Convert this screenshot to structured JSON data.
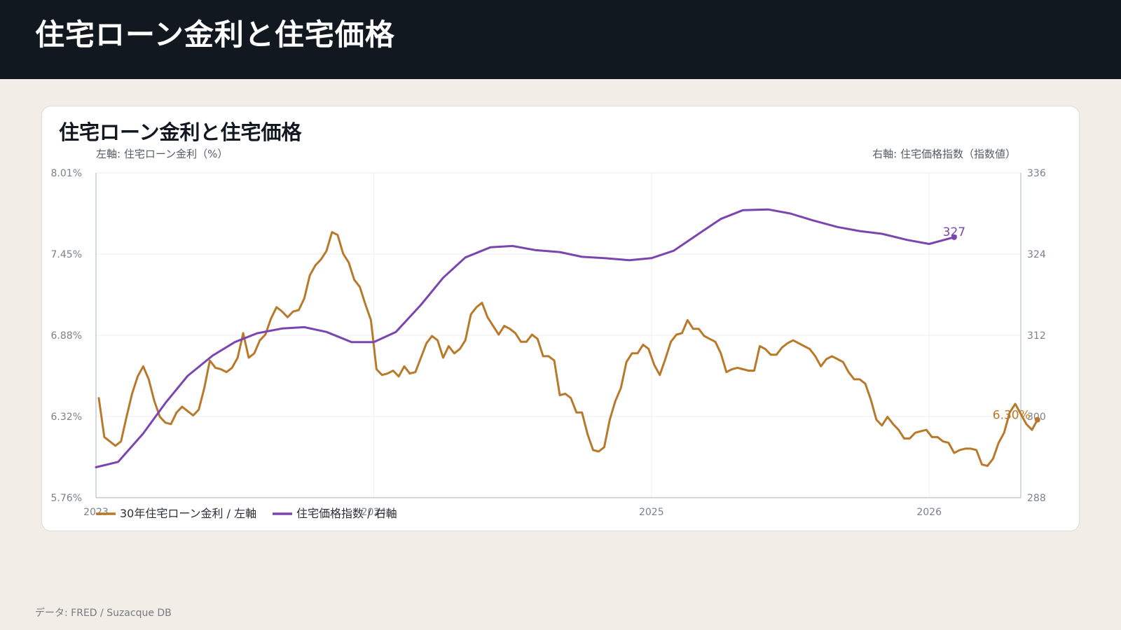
{
  "header": {
    "title": "住宅ローン金利と住宅価格"
  },
  "card": {
    "title": "住宅ローン金利と住宅価格",
    "left_axis_caption": "左軸: 住宅ローン金利（%）",
    "right_axis_caption": "右軸: 住宅価格指数（指数値）"
  },
  "footer": {
    "source": "データ: FRED / Suzacque DB"
  },
  "chart_data": {
    "type": "line",
    "title": "住宅ローン金利と住宅価格",
    "x_ticks": [
      "2023",
      "2024",
      "2025",
      "2026"
    ],
    "x_range": [
      2023.0,
      2026.33
    ],
    "y_left": {
      "label": "左軸: 住宅ローン金利（%）",
      "range": [
        5.76,
        8.01
      ],
      "ticks": [
        "8.01%",
        "7.45%",
        "6.88%",
        "6.32%",
        "5.76%"
      ]
    },
    "y_right": {
      "label": "右軸: 住宅価格指数（指数値）",
      "range": [
        288,
        336
      ],
      "ticks": [
        "336",
        "324",
        "312",
        "300",
        "288"
      ]
    },
    "grid": true,
    "legend_position": "bottom-left",
    "colors": {
      "mortgage": "#b8792a",
      "hpi": "#7b45b0"
    },
    "series": [
      {
        "name": "30年住宅ローン金利 / 左軸",
        "axis": "left",
        "end_label": "6.30%",
        "points": [
          [
            2023.01,
            6.45
          ],
          [
            2023.03,
            6.18
          ],
          [
            2023.05,
            6.15
          ],
          [
            2023.07,
            6.12
          ],
          [
            2023.09,
            6.15
          ],
          [
            2023.11,
            6.32
          ],
          [
            2023.13,
            6.48
          ],
          [
            2023.15,
            6.6
          ],
          [
            2023.17,
            6.67
          ],
          [
            2023.19,
            6.58
          ],
          [
            2023.21,
            6.43
          ],
          [
            2023.23,
            6.32
          ],
          [
            2023.25,
            6.28
          ],
          [
            2023.27,
            6.27
          ],
          [
            2023.29,
            6.35
          ],
          [
            2023.31,
            6.39
          ],
          [
            2023.33,
            6.36
          ],
          [
            2023.35,
            6.33
          ],
          [
            2023.37,
            6.37
          ],
          [
            2023.39,
            6.52
          ],
          [
            2023.41,
            6.71
          ],
          [
            2023.43,
            6.66
          ],
          [
            2023.45,
            6.65
          ],
          [
            2023.47,
            6.63
          ],
          [
            2023.49,
            6.66
          ],
          [
            2023.51,
            6.73
          ],
          [
            2023.53,
            6.9
          ],
          [
            2023.55,
            6.73
          ],
          [
            2023.57,
            6.76
          ],
          [
            2023.59,
            6.85
          ],
          [
            2023.61,
            6.89
          ],
          [
            2023.63,
            7.0
          ],
          [
            2023.65,
            7.08
          ],
          [
            2023.67,
            7.05
          ],
          [
            2023.69,
            7.01
          ],
          [
            2023.71,
            7.05
          ],
          [
            2023.73,
            7.06
          ],
          [
            2023.75,
            7.14
          ],
          [
            2023.77,
            7.3
          ],
          [
            2023.79,
            7.37
          ],
          [
            2023.81,
            7.41
          ],
          [
            2023.83,
            7.47
          ],
          [
            2023.85,
            7.6
          ],
          [
            2023.87,
            7.58
          ],
          [
            2023.89,
            7.45
          ],
          [
            2023.91,
            7.39
          ],
          [
            2023.93,
            7.27
          ],
          [
            2023.95,
            7.22
          ],
          [
            2023.97,
            7.1
          ],
          [
            2023.99,
            6.99
          ],
          [
            2024.01,
            6.65
          ],
          [
            2024.03,
            6.61
          ],
          [
            2024.05,
            6.62
          ],
          [
            2024.07,
            6.64
          ],
          [
            2024.09,
            6.6
          ],
          [
            2024.11,
            6.67
          ],
          [
            2024.13,
            6.62
          ],
          [
            2024.15,
            6.63
          ],
          [
            2024.17,
            6.73
          ],
          [
            2024.19,
            6.83
          ],
          [
            2024.21,
            6.88
          ],
          [
            2024.23,
            6.85
          ],
          [
            2024.25,
            6.73
          ],
          [
            2024.27,
            6.81
          ],
          [
            2024.29,
            6.76
          ],
          [
            2024.31,
            6.79
          ],
          [
            2024.33,
            6.85
          ],
          [
            2024.35,
            7.03
          ],
          [
            2024.37,
            7.08
          ],
          [
            2024.39,
            7.11
          ],
          [
            2024.41,
            7.01
          ],
          [
            2024.43,
            6.95
          ],
          [
            2024.45,
            6.89
          ],
          [
            2024.47,
            6.95
          ],
          [
            2024.49,
            6.93
          ],
          [
            2024.51,
            6.9
          ],
          [
            2024.53,
            6.84
          ],
          [
            2024.55,
            6.84
          ],
          [
            2024.57,
            6.89
          ],
          [
            2024.59,
            6.86
          ],
          [
            2024.61,
            6.74
          ],
          [
            2024.63,
            6.74
          ],
          [
            2024.65,
            6.71
          ],
          [
            2024.67,
            6.47
          ],
          [
            2024.69,
            6.48
          ],
          [
            2024.71,
            6.45
          ],
          [
            2024.73,
            6.35
          ],
          [
            2024.75,
            6.35
          ],
          [
            2024.77,
            6.2
          ],
          [
            2024.79,
            6.09
          ],
          [
            2024.81,
            6.08
          ],
          [
            2024.83,
            6.11
          ],
          [
            2024.85,
            6.3
          ],
          [
            2024.87,
            6.43
          ],
          [
            2024.89,
            6.52
          ],
          [
            2024.91,
            6.7
          ],
          [
            2024.93,
            6.76
          ],
          [
            2024.95,
            6.76
          ],
          [
            2024.97,
            6.82
          ],
          [
            2024.99,
            6.79
          ],
          [
            2025.01,
            6.68
          ],
          [
            2025.03,
            6.61
          ],
          [
            2025.05,
            6.72
          ],
          [
            2025.07,
            6.84
          ],
          [
            2025.09,
            6.89
          ],
          [
            2025.11,
            6.9
          ],
          [
            2025.13,
            6.99
          ],
          [
            2025.15,
            6.93
          ],
          [
            2025.17,
            6.93
          ],
          [
            2025.19,
            6.88
          ],
          [
            2025.21,
            6.86
          ],
          [
            2025.23,
            6.84
          ],
          [
            2025.25,
            6.76
          ],
          [
            2025.27,
            6.63
          ],
          [
            2025.29,
            6.65
          ],
          [
            2025.31,
            6.66
          ],
          [
            2025.33,
            6.65
          ],
          [
            2025.35,
            6.64
          ],
          [
            2025.37,
            6.64
          ],
          [
            2025.39,
            6.81
          ],
          [
            2025.41,
            6.79
          ],
          [
            2025.43,
            6.75
          ],
          [
            2025.45,
            6.75
          ],
          [
            2025.47,
            6.8
          ],
          [
            2025.49,
            6.83
          ],
          [
            2025.51,
            6.85
          ],
          [
            2025.53,
            6.83
          ],
          [
            2025.55,
            6.81
          ],
          [
            2025.57,
            6.79
          ],
          [
            2025.59,
            6.74
          ],
          [
            2025.61,
            6.67
          ],
          [
            2025.63,
            6.72
          ],
          [
            2025.65,
            6.74
          ],
          [
            2025.67,
            6.72
          ],
          [
            2025.69,
            6.7
          ],
          [
            2025.71,
            6.63
          ],
          [
            2025.73,
            6.58
          ],
          [
            2025.75,
            6.58
          ],
          [
            2025.77,
            6.55
          ],
          [
            2025.79,
            6.44
          ],
          [
            2025.81,
            6.3
          ],
          [
            2025.83,
            6.26
          ],
          [
            2025.85,
            6.32
          ],
          [
            2025.87,
            6.27
          ],
          [
            2025.89,
            6.23
          ],
          [
            2025.91,
            6.17
          ],
          [
            2025.93,
            6.17
          ],
          [
            2025.95,
            6.21
          ],
          [
            2025.97,
            6.22
          ],
          [
            2025.99,
            6.23
          ],
          [
            2026.01,
            6.18
          ],
          [
            2026.03,
            6.18
          ],
          [
            2026.05,
            6.15
          ],
          [
            2026.07,
            6.14
          ],
          [
            2026.09,
            6.07
          ],
          [
            2026.11,
            6.09
          ],
          [
            2026.13,
            6.1
          ],
          [
            2026.15,
            6.1
          ],
          [
            2026.17,
            6.09
          ],
          [
            2026.19,
            5.99
          ],
          [
            2026.21,
            5.98
          ],
          [
            2026.23,
            6.03
          ],
          [
            2026.25,
            6.14
          ],
          [
            2026.27,
            6.21
          ],
          [
            2026.29,
            6.35
          ],
          [
            2026.31,
            6.41
          ],
          [
            2026.33,
            6.34
          ],
          [
            2026.35,
            6.27
          ],
          [
            2026.37,
            6.23
          ],
          [
            2026.39,
            6.3
          ]
        ]
      },
      {
        "name": "住宅価格指数 / 右軸",
        "axis": "right",
        "end_label": "327",
        "points": [
          [
            2023.0,
            292.5
          ],
          [
            2023.08,
            293.3
          ],
          [
            2023.17,
            297.5
          ],
          [
            2023.25,
            302.0
          ],
          [
            2023.33,
            306.0
          ],
          [
            2023.42,
            309.0
          ],
          [
            2023.5,
            311.0
          ],
          [
            2023.58,
            312.3
          ],
          [
            2023.67,
            313.0
          ],
          [
            2023.75,
            313.2
          ],
          [
            2023.83,
            312.5
          ],
          [
            2023.92,
            311.0
          ],
          [
            2024.0,
            311.0
          ],
          [
            2024.08,
            312.5
          ],
          [
            2024.17,
            316.5
          ],
          [
            2024.25,
            320.5
          ],
          [
            2024.33,
            323.5
          ],
          [
            2024.42,
            325.0
          ],
          [
            2024.5,
            325.2
          ],
          [
            2024.58,
            324.6
          ],
          [
            2024.67,
            324.3
          ],
          [
            2024.75,
            323.6
          ],
          [
            2024.83,
            323.4
          ],
          [
            2024.92,
            323.1
          ],
          [
            2025.0,
            323.4
          ],
          [
            2025.08,
            324.5
          ],
          [
            2025.17,
            327.0
          ],
          [
            2025.25,
            329.2
          ],
          [
            2025.33,
            330.5
          ],
          [
            2025.42,
            330.6
          ],
          [
            2025.5,
            330.0
          ],
          [
            2025.58,
            329.0
          ],
          [
            2025.67,
            328.0
          ],
          [
            2025.75,
            327.4
          ],
          [
            2025.83,
            327.0
          ],
          [
            2025.92,
            326.1
          ],
          [
            2026.0,
            325.5
          ],
          [
            2026.09,
            326.5
          ]
        ]
      }
    ]
  }
}
